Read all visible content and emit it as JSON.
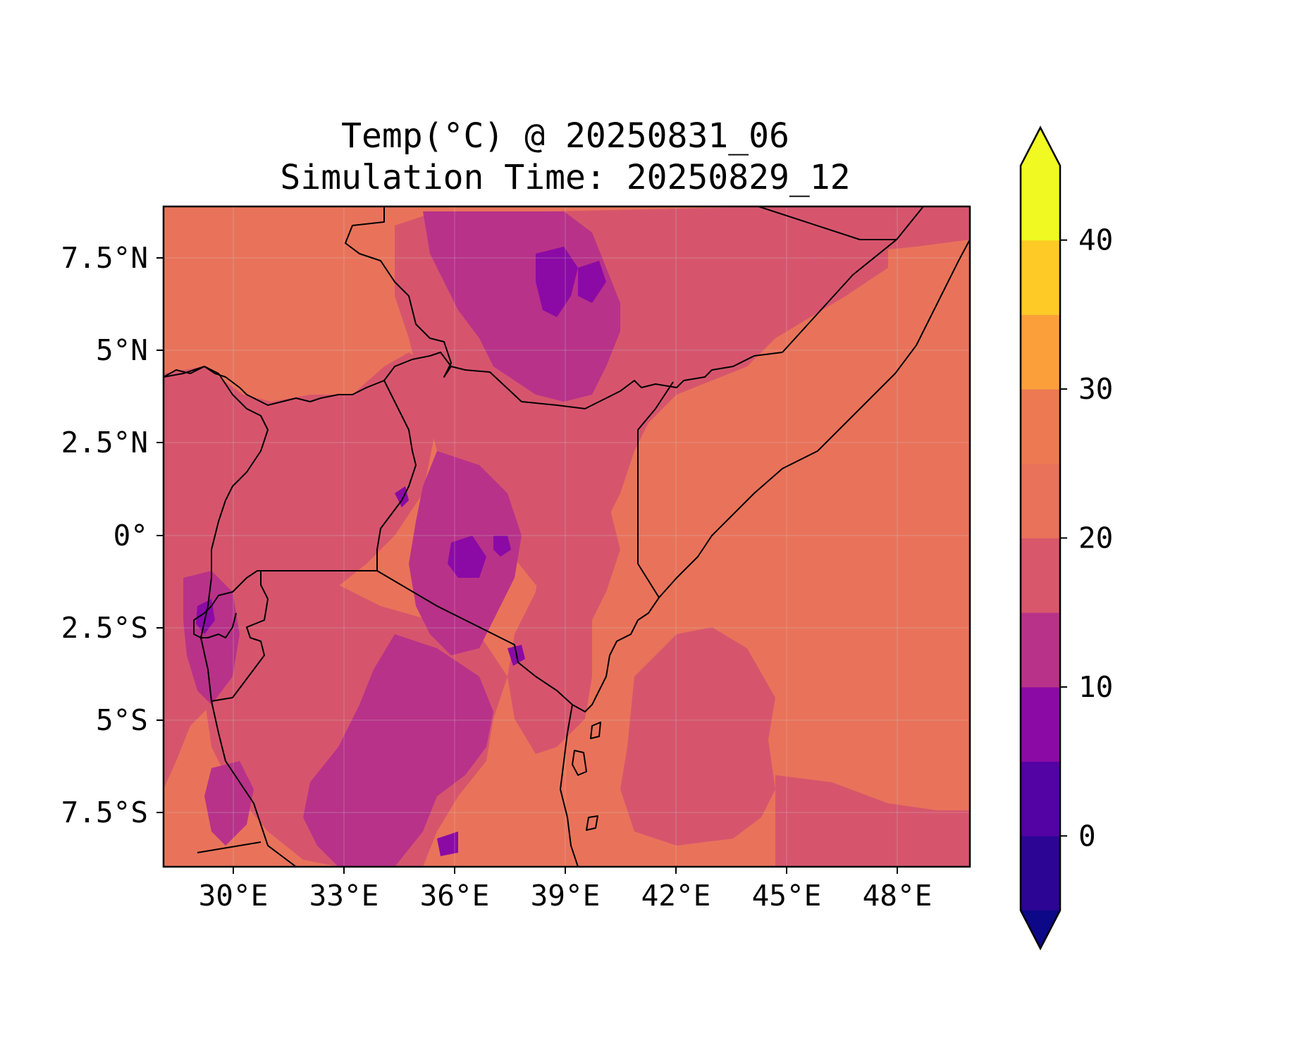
{
  "title": {
    "line1": "Temp(°C) @ 20250831_06",
    "line2": "Simulation Time: 20250829_12"
  },
  "map": {
    "x_ticks": [
      "30°E",
      "33°E",
      "36°E",
      "39°E",
      "42°E",
      "45°E",
      "48°E"
    ],
    "y_ticks": [
      "7.5°N",
      "5°N",
      "2.5°N",
      "0°",
      "2.5°S",
      "5°S",
      "7.5°S"
    ],
    "lon_range": [
      28.1,
      49.9
    ],
    "lat_range": [
      -8.9,
      8.9
    ]
  },
  "colorbar": {
    "tick_labels": [
      "0",
      "10",
      "20",
      "30",
      "40"
    ],
    "levels": [
      -5,
      0,
      5,
      10,
      15,
      20,
      25,
      30,
      35,
      40,
      45
    ],
    "colors": [
      "#0d0887",
      "#2c0594",
      "#5302a3",
      "#8b0aa5",
      "#b83289",
      "#d8576b",
      "#e9725a",
      "#ed7953",
      "#fb9f3a",
      "#fdca26",
      "#f0f921"
    ],
    "extend": "both"
  },
  "chart_data": {
    "type": "heatmap",
    "title": "Temp(°C) @ 20250831_06\nSimulation Time: 20250829_12",
    "x_unit": "longitude (°E)",
    "y_unit": "latitude",
    "xlim": [
      28.1,
      49.9
    ],
    "ylim": [
      -8.9,
      8.9
    ],
    "value_range": [
      -5,
      45
    ],
    "grid": true,
    "dominant_values": {
      "lowlands_and_ocean": "25-30",
      "highlands_plateau": "15-25",
      "ethiopian_highlands": "10-20"
    }
  }
}
